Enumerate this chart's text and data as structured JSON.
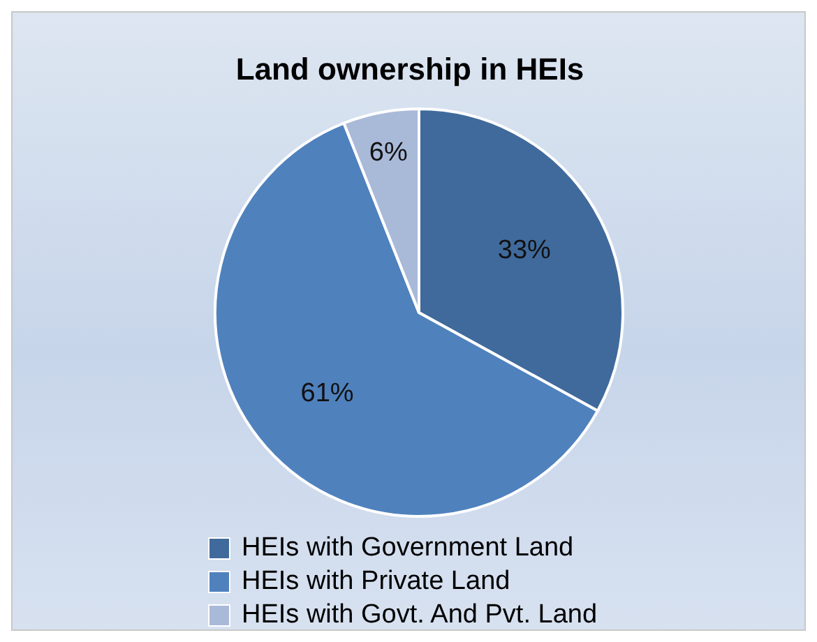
{
  "chart_data": {
    "type": "pie",
    "title": "Land ownership in HEIs",
    "categories": [
      "HEIs with Government Land",
      "HEIs with Private Land",
      "HEIs with Govt. And Pvt. Land"
    ],
    "values": [
      33,
      61,
      6
    ],
    "colors": [
      "#406a9c",
      "#4f81bd",
      "#a9b9d8"
    ],
    "value_labels": [
      "33%",
      "61%",
      "6%"
    ],
    "legend": "bottom"
  }
}
